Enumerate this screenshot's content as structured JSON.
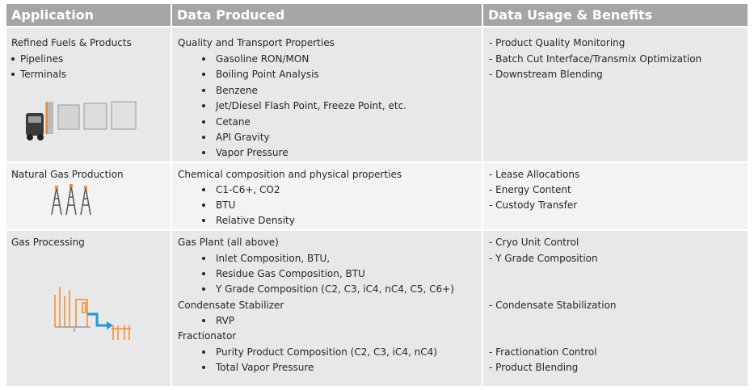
{
  "header": {
    "application": "Application",
    "data_produced": "Data Produced",
    "usage": "Data Usage & Benefits"
  },
  "rows": [
    {
      "application": {
        "title": "Refined Fuels & Products",
        "items": [
          "Pipelines",
          "Terminals"
        ]
      },
      "produced": [
        {
          "heading": "Quality and Transport Properties",
          "items": [
            "Gasoline RON/MON",
            "Boiling Point Analysis",
            "Benzene",
            "Jet/Diesel Flash Point, Freeze Point, etc.",
            "Cetane",
            "API Gravity",
            "Vapor Pressure"
          ]
        }
      ],
      "usage": [
        "- Product Quality Monitoring",
        "- Batch Cut Interface/Transmix Optimization",
        "- Downstream Blending"
      ]
    },
    {
      "application": {
        "title": "Natural Gas Production"
      },
      "produced": [
        {
          "heading": "Chemical composition and physical properties",
          "items": [
            "C1-C6+, CO2",
            "BTU",
            "Relative Density"
          ]
        }
      ],
      "usage": [
        "- Lease Allocations",
        "- Energy Content",
        "- Custody Transfer"
      ]
    },
    {
      "application": {
        "title": "Gas Processing"
      },
      "produced": [
        {
          "heading": "Gas Plant (all above)",
          "items": [
            "Inlet Composition, BTU,",
            "Residue Gas Composition, BTU",
            "Y Grade Composition (C2, C3, iC4, nC4, C5, C6+)"
          ]
        },
        {
          "heading": "Condensate Stabilizer",
          "items": [
            "RVP"
          ]
        },
        {
          "heading": "Fractionator",
          "items": [
            "Purity Product Composition (C2, C3, iC4, nC4)",
            "Total Vapor Pressure"
          ]
        }
      ],
      "usage": [
        "- Cryo Unit Control",
        "- Y Grade Composition",
        "- Condensate Stabilization",
        "- Fractionation Control",
        "- Product Blending"
      ]
    }
  ]
}
